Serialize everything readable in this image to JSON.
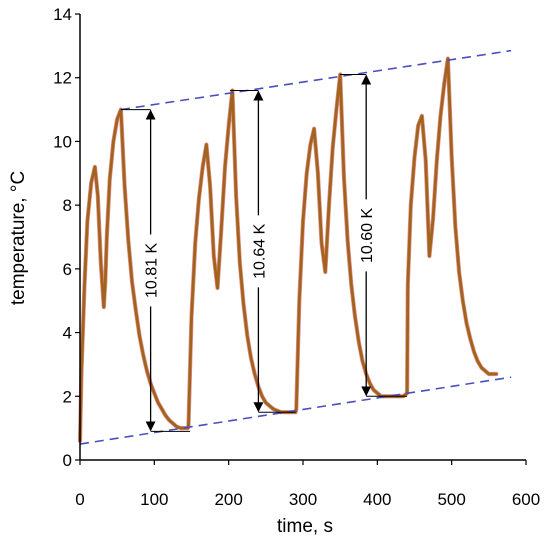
{
  "chart_data": {
    "type": "line",
    "xlabel": "time, s",
    "ylabel": "temperature, °C",
    "xlim": [
      0,
      600
    ],
    "ylim": [
      0,
      14
    ],
    "x_ticks": [
      0,
      100,
      200,
      300,
      400,
      500,
      600
    ],
    "y_ticks": [
      0,
      2,
      4,
      6,
      8,
      10,
      12,
      14
    ],
    "x_tick_labels": [
      "0",
      "100",
      "200",
      "300",
      "400",
      "500",
      "600"
    ],
    "y_tick_labels": [
      "0",
      "2",
      "4",
      "6",
      "8",
      "10",
      "12",
      "14"
    ],
    "grid": false,
    "colors": {
      "curve": "#a0641e",
      "curve_edge": "#d0342a",
      "envelope": "#4a4fbf",
      "annotation": "#000000"
    },
    "series": [
      {
        "x": [
          0,
          2,
          6,
          10,
          15,
          20,
          24,
          28,
          32,
          34,
          36,
          40,
          45,
          50,
          55,
          60,
          65,
          70,
          75,
          80,
          85,
          90,
          95,
          100,
          105,
          110,
          115,
          120,
          125,
          130,
          135,
          140,
          145,
          146,
          150,
          155,
          160,
          165,
          170,
          175,
          180,
          185,
          190,
          195,
          200,
          205,
          210,
          215,
          220,
          225,
          230,
          235,
          240,
          245,
          250,
          255,
          260,
          265,
          270,
          275,
          280,
          285,
          290,
          291,
          295,
          300,
          305,
          310,
          315,
          320,
          325,
          330,
          335,
          340,
          345,
          350,
          355,
          360,
          365,
          370,
          375,
          380,
          385,
          390,
          395,
          400,
          405,
          410,
          415,
          420,
          425,
          430,
          435,
          440,
          441,
          445,
          450,
          455,
          460,
          465,
          470,
          475,
          480,
          485,
          490,
          495,
          500,
          505,
          510,
          515,
          520,
          525,
          530,
          535,
          540,
          545,
          550,
          555,
          560
        ],
        "y": [
          0.6,
          2.8,
          5.5,
          7.5,
          8.7,
          9.2,
          8.3,
          6.2,
          4.8,
          5.6,
          7.0,
          8.8,
          10.0,
          10.7,
          11.0,
          8.6,
          6.9,
          5.6,
          4.7,
          3.9,
          3.3,
          2.8,
          2.4,
          2.1,
          1.8,
          1.6,
          1.4,
          1.25,
          1.15,
          1.05,
          1.0,
          1.0,
          1.0,
          1.1,
          4.5,
          6.8,
          8.2,
          9.2,
          9.9,
          8.6,
          6.4,
          5.4,
          7.2,
          9.2,
          10.5,
          11.6,
          8.3,
          6.2,
          4.9,
          3.9,
          3.2,
          2.7,
          2.3,
          2.0,
          1.8,
          1.7,
          1.6,
          1.55,
          1.5,
          1.5,
          1.5,
          1.5,
          1.5,
          1.6,
          5.0,
          7.5,
          9.0,
          9.9,
          10.4,
          9.0,
          6.8,
          5.9,
          8.0,
          9.8,
          11.0,
          12.1,
          8.9,
          6.9,
          5.5,
          4.5,
          3.7,
          3.1,
          2.7,
          2.4,
          2.2,
          2.1,
          2.0,
          2.0,
          2.0,
          2.0,
          2.0,
          2.0,
          2.0,
          2.1,
          5.5,
          8.0,
          9.5,
          10.5,
          10.8,
          9.4,
          6.4,
          7.6,
          9.4,
          10.8,
          11.8,
          12.6,
          9.5,
          7.3,
          5.9,
          5.0,
          4.3,
          3.8,
          3.4,
          3.1,
          2.9,
          2.8,
          2.7,
          2.7,
          2.7
        ]
      }
    ],
    "envelopes": [
      {
        "x": [
          0,
          580
        ],
        "y": [
          0.5,
          2.6
        ]
      },
      {
        "x": [
          55,
          580
        ],
        "y": [
          11.0,
          12.85
        ]
      }
    ],
    "annotations": [
      {
        "label": "10.81 K",
        "x": 95,
        "y_bottom": 0.9,
        "y_top": 11.0,
        "ref_bottom_x": [
          95,
          148
        ],
        "ref_top_x": [
          55,
          95
        ]
      },
      {
        "label": "10.64 K",
        "x": 240,
        "y_bottom": 1.5,
        "y_top": 11.6,
        "ref_bottom_x": [
          240,
          290
        ],
        "ref_top_x": [
          202,
          240
        ]
      },
      {
        "label": "10.60 K",
        "x": 385,
        "y_bottom": 2.0,
        "y_top": 12.1,
        "ref_bottom_x": [
          385,
          440
        ],
        "ref_top_x": [
          350,
          385
        ]
      }
    ]
  }
}
